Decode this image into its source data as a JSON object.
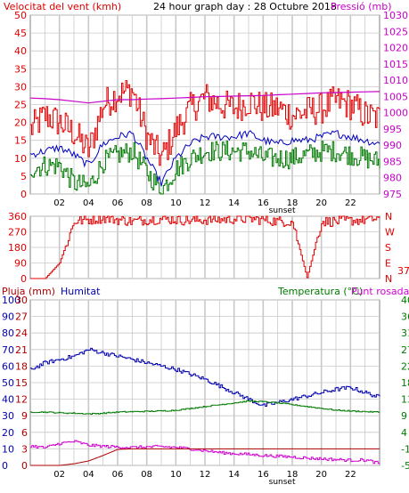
{
  "colors": {
    "wind": "#e00000",
    "wind_avg": "#0000c0",
    "wind_min": "#007a00",
    "pressure": "#c800c8",
    "humidity": "#0000b0",
    "temperature": "#007a00",
    "dewpoint": "#d000d0",
    "rain": "#b00000",
    "grid": "#c8c8c8"
  },
  "chart_data": [
    {
      "type": "line",
      "title": "24 hour graph day : 28 Octubre 2018",
      "left_label": "Velocitat del vent (kmh)",
      "right_label": "Pressió (mb)",
      "x_ticks": [
        "02",
        "04",
        "06",
        "08",
        "10",
        "12",
        "14",
        "16",
        "18",
        "20",
        "22"
      ],
      "x_note": "sunset",
      "y_left": {
        "ticks": [
          0,
          5,
          10,
          15,
          20,
          25,
          30,
          35,
          40,
          45,
          50
        ],
        "range": [
          0,
          50
        ]
      },
      "y_right": {
        "ticks": [
          975,
          980,
          985,
          990,
          995,
          1000,
          1005,
          1010,
          1015,
          1020,
          1025,
          1030
        ],
        "range": [
          975,
          1030
        ]
      },
      "series": [
        {
          "key": "gust",
          "x": [
            0,
            1,
            2,
            3,
            4,
            5,
            6,
            7,
            8,
            9,
            10,
            11,
            12,
            13,
            14,
            15,
            16,
            17,
            18,
            19,
            20,
            21,
            22,
            23,
            24
          ],
          "values": [
            18,
            22,
            20,
            17,
            12,
            25,
            28,
            29,
            16,
            10,
            18,
            24,
            27,
            25,
            24,
            26,
            24,
            24,
            22,
            23,
            24,
            26,
            25,
            22,
            21
          ]
        },
        {
          "key": "avg",
          "x": [
            0,
            1,
            2,
            3,
            4,
            5,
            6,
            7,
            8,
            9,
            10,
            11,
            12,
            13,
            14,
            15,
            16,
            17,
            18,
            19,
            20,
            21,
            22,
            23,
            24
          ],
          "values": [
            11,
            12,
            13,
            11,
            8,
            14,
            16,
            17,
            10,
            3,
            10,
            14,
            16,
            16,
            16,
            17,
            15,
            14,
            15,
            15,
            16,
            17,
            16,
            15,
            14
          ]
        },
        {
          "key": "lull",
          "x": [
            0,
            1,
            2,
            3,
            4,
            5,
            6,
            7,
            8,
            9,
            10,
            11,
            12,
            13,
            14,
            15,
            16,
            17,
            18,
            19,
            20,
            21,
            22,
            23,
            24
          ],
          "values": [
            7,
            8,
            8,
            3,
            2,
            9,
            11,
            12,
            6,
            1,
            7,
            10,
            12,
            12,
            12,
            12,
            10,
            10,
            10,
            11,
            12,
            12,
            11,
            10,
            9
          ]
        },
        {
          "key": "pressure",
          "x": [
            0,
            1,
            2,
            3,
            4,
            5,
            6,
            7,
            8,
            9,
            10,
            11,
            12,
            13,
            14,
            15,
            16,
            17,
            18,
            19,
            20,
            21,
            22,
            23,
            24
          ],
          "values": [
            1004.5,
            1004.3,
            1004,
            1003.5,
            1003,
            1003.5,
            1004,
            1004,
            1004.2,
            1004.3,
            1004.5,
            1004.7,
            1004.9,
            1005,
            1005.1,
            1005.2,
            1005.3,
            1005.5,
            1005.7,
            1005.9,
            1006.1,
            1006.2,
            1006.3,
            1006.4,
            1006.5
          ]
        }
      ]
    },
    {
      "type": "line",
      "y_left_ticks": [
        0,
        90,
        180,
        270,
        360
      ],
      "y_right_ticks": [
        "N",
        "W",
        "S",
        "E",
        "N"
      ],
      "right_value": "37",
      "x": [
        0,
        1,
        2,
        3,
        4,
        5,
        6,
        7,
        8,
        9,
        10,
        11,
        12,
        13,
        14,
        15,
        16,
        17,
        18,
        19,
        20,
        21,
        22,
        23,
        24
      ],
      "values": [
        0,
        0,
        90,
        330,
        340,
        350,
        340,
        330,
        340,
        345,
        340,
        335,
        340,
        340,
        345,
        345,
        340,
        330,
        330,
        5,
        330,
        330,
        335,
        340,
        350
      ]
    },
    {
      "type": "line",
      "left_label_rain": "Pluja (mm)",
      "left_label_hum": "Humitat",
      "right_label": "Temperatura (°C)",
      "right_label_2": "Punt rosada",
      "x_ticks": [
        "02",
        "04",
        "06",
        "08",
        "10",
        "12",
        "14",
        "16",
        "18",
        "20",
        "22"
      ],
      "x_note": "sunset",
      "y_hum_ticks": [
        0,
        10,
        20,
        30,
        40,
        50,
        60,
        70,
        80,
        90,
        100
      ],
      "y_rain_ticks": [
        0,
        3,
        6,
        9,
        12,
        15,
        18,
        21,
        24,
        27,
        30
      ],
      "y_temp_ticks": [
        -5,
        -1,
        4,
        9,
        13,
        18,
        22,
        27,
        31,
        36,
        40
      ],
      "series": [
        {
          "key": "humidity",
          "x": [
            0,
            1,
            2,
            3,
            4,
            5,
            6,
            7,
            8,
            9,
            10,
            11,
            12,
            13,
            14,
            15,
            16,
            17,
            18,
            19,
            20,
            21,
            22,
            23,
            24
          ],
          "values": [
            58,
            62,
            64,
            66,
            70,
            68,
            66,
            64,
            62,
            60,
            58,
            55,
            52,
            48,
            44,
            40,
            36,
            38,
            40,
            42,
            44,
            46,
            47,
            44,
            41
          ]
        },
        {
          "key": "temperature",
          "x": [
            0,
            1,
            2,
            3,
            4,
            5,
            6,
            7,
            8,
            9,
            10,
            11,
            12,
            13,
            14,
            15,
            16,
            17,
            18,
            19,
            20,
            21,
            22,
            23,
            24
          ],
          "values": [
            9.5,
            9.5,
            9.3,
            9.2,
            9.0,
            9.2,
            9.5,
            9.6,
            9.7,
            9.8,
            10.0,
            10.5,
            11.0,
            11.5,
            12.0,
            12.5,
            12.3,
            12.0,
            11.5,
            11.0,
            10.5,
            10.0,
            9.8,
            9.6,
            9.5
          ]
        },
        {
          "key": "dewpoint",
          "x": [
            0,
            1,
            2,
            3,
            4,
            5,
            6,
            7,
            8,
            9,
            10,
            11,
            12,
            13,
            14,
            15,
            16,
            17,
            18,
            19,
            20,
            21,
            22,
            23,
            24
          ],
          "values": [
            0.3,
            -0.2,
            1.0,
            1.5,
            0.5,
            0.2,
            0.0,
            -0.1,
            0.0,
            0.1,
            -0.1,
            -0.5,
            -1.0,
            -1.5,
            -1.8,
            -2.0,
            -2.3,
            -2.5,
            -2.7,
            -3.0,
            -3.2,
            -3.4,
            -3.6,
            -3.5,
            -4.5
          ]
        },
        {
          "key": "rain",
          "x": [
            0,
            1,
            2,
            3,
            4,
            5,
            6,
            7,
            8,
            9,
            10,
            11,
            12,
            13,
            14,
            15,
            16,
            17,
            18,
            19,
            20,
            21,
            22,
            23,
            24
          ],
          "values": [
            0,
            0,
            0,
            0.3,
            0.8,
            1.8,
            2.9,
            3.0,
            3.0,
            3.0,
            3.0,
            3.0,
            3.0,
            3.0,
            3.0,
            3.0,
            3.0,
            3.0,
            3.0,
            3.0,
            3.0,
            3.0,
            3.0,
            3.0,
            3.0
          ]
        }
      ]
    }
  ]
}
